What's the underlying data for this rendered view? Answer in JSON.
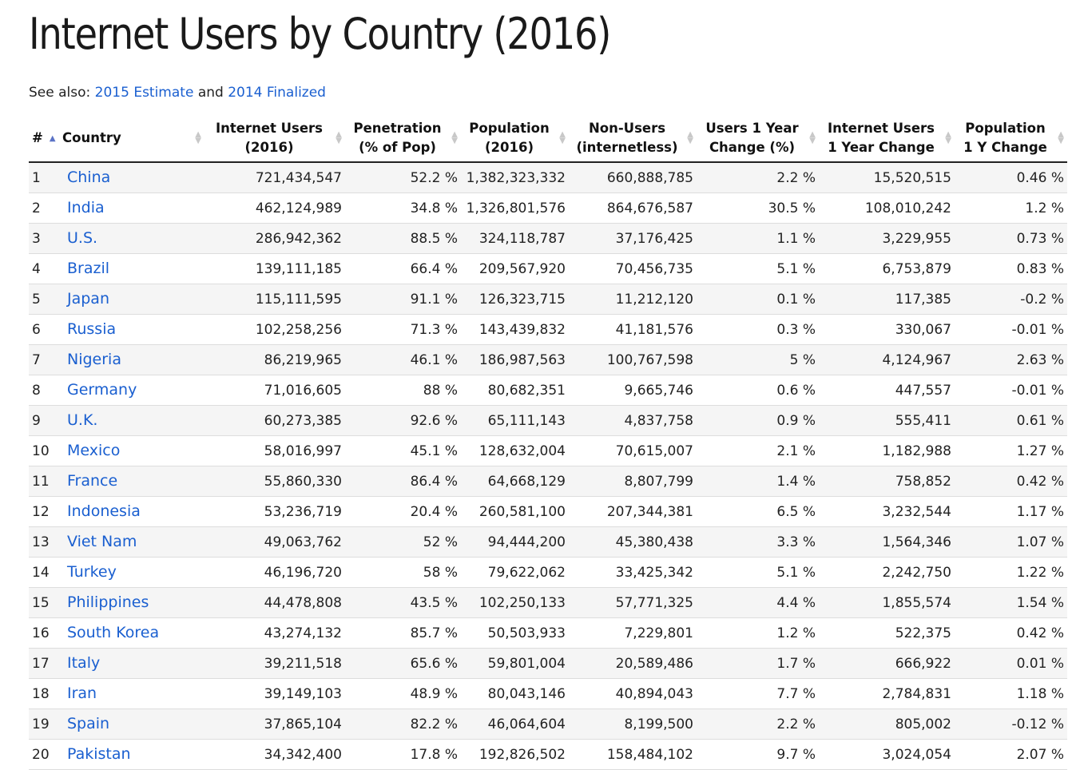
{
  "page": {
    "title": "Internet Users by Country (2016)",
    "see_also_prefix": "See also: ",
    "link_2015": "2015 Estimate",
    "see_also_and": " and ",
    "link_2014": "2014 Finalized"
  },
  "table": {
    "headers": {
      "rank": "#",
      "country": "Country",
      "users_l1": "Internet Users",
      "users_l2": "(2016)",
      "pen_l1": "Penetration",
      "pen_l2": "(% of Pop)",
      "pop_l1": "Population",
      "pop_l2": "(2016)",
      "non_l1": "Non-Users",
      "non_l2": "(internetless)",
      "uchg_l1": "Users 1 Year",
      "uchg_l2": "Change (%)",
      "iuchg_l1": "Internet Users",
      "iuchg_l2": "1 Year Change",
      "pchg_l1": "Population",
      "pchg_l2": "1 Y Change"
    },
    "rows": [
      {
        "rank": "1",
        "country": "China",
        "users": "721,434,547",
        "penetration": "52.2 %",
        "population": "1,382,323,332",
        "non_users": "660,888,785",
        "users_change_pct": "2.2 %",
        "users_change": "15,520,515",
        "pop_change": "0.46 %"
      },
      {
        "rank": "2",
        "country": "India",
        "users": "462,124,989",
        "penetration": "34.8 %",
        "population": "1,326,801,576",
        "non_users": "864,676,587",
        "users_change_pct": "30.5 %",
        "users_change": "108,010,242",
        "pop_change": "1.2 %"
      },
      {
        "rank": "3",
        "country": "U.S.",
        "users": "286,942,362",
        "penetration": "88.5 %",
        "population": "324,118,787",
        "non_users": "37,176,425",
        "users_change_pct": "1.1 %",
        "users_change": "3,229,955",
        "pop_change": "0.73 %"
      },
      {
        "rank": "4",
        "country": "Brazil",
        "users": "139,111,185",
        "penetration": "66.4 %",
        "population": "209,567,920",
        "non_users": "70,456,735",
        "users_change_pct": "5.1 %",
        "users_change": "6,753,879",
        "pop_change": "0.83 %"
      },
      {
        "rank": "5",
        "country": "Japan",
        "users": "115,111,595",
        "penetration": "91.1 %",
        "population": "126,323,715",
        "non_users": "11,212,120",
        "users_change_pct": "0.1 %",
        "users_change": "117,385",
        "pop_change": "-0.2 %"
      },
      {
        "rank": "6",
        "country": "Russia",
        "users": "102,258,256",
        "penetration": "71.3 %",
        "population": "143,439,832",
        "non_users": "41,181,576",
        "users_change_pct": "0.3 %",
        "users_change": "330,067",
        "pop_change": "-0.01 %"
      },
      {
        "rank": "7",
        "country": "Nigeria",
        "users": "86,219,965",
        "penetration": "46.1 %",
        "population": "186,987,563",
        "non_users": "100,767,598",
        "users_change_pct": "5 %",
        "users_change": "4,124,967",
        "pop_change": "2.63 %"
      },
      {
        "rank": "8",
        "country": "Germany",
        "users": "71,016,605",
        "penetration": "88 %",
        "population": "80,682,351",
        "non_users": "9,665,746",
        "users_change_pct": "0.6 %",
        "users_change": "447,557",
        "pop_change": "-0.01 %"
      },
      {
        "rank": "9",
        "country": "U.K.",
        "users": "60,273,385",
        "penetration": "92.6 %",
        "population": "65,111,143",
        "non_users": "4,837,758",
        "users_change_pct": "0.9 %",
        "users_change": "555,411",
        "pop_change": "0.61 %"
      },
      {
        "rank": "10",
        "country": "Mexico",
        "users": "58,016,997",
        "penetration": "45.1 %",
        "population": "128,632,004",
        "non_users": "70,615,007",
        "users_change_pct": "2.1 %",
        "users_change": "1,182,988",
        "pop_change": "1.27 %"
      },
      {
        "rank": "11",
        "country": "France",
        "users": "55,860,330",
        "penetration": "86.4 %",
        "population": "64,668,129",
        "non_users": "8,807,799",
        "users_change_pct": "1.4 %",
        "users_change": "758,852",
        "pop_change": "0.42 %"
      },
      {
        "rank": "12",
        "country": "Indonesia",
        "users": "53,236,719",
        "penetration": "20.4 %",
        "population": "260,581,100",
        "non_users": "207,344,381",
        "users_change_pct": "6.5 %",
        "users_change": "3,232,544",
        "pop_change": "1.17 %"
      },
      {
        "rank": "13",
        "country": "Viet Nam",
        "users": "49,063,762",
        "penetration": "52 %",
        "population": "94,444,200",
        "non_users": "45,380,438",
        "users_change_pct": "3.3 %",
        "users_change": "1,564,346",
        "pop_change": "1.07 %"
      },
      {
        "rank": "14",
        "country": "Turkey",
        "users": "46,196,720",
        "penetration": "58 %",
        "population": "79,622,062",
        "non_users": "33,425,342",
        "users_change_pct": "5.1 %",
        "users_change": "2,242,750",
        "pop_change": "1.22 %"
      },
      {
        "rank": "15",
        "country": "Philippines",
        "users": "44,478,808",
        "penetration": "43.5 %",
        "population": "102,250,133",
        "non_users": "57,771,325",
        "users_change_pct": "4.4 %",
        "users_change": "1,855,574",
        "pop_change": "1.54 %"
      },
      {
        "rank": "16",
        "country": "South Korea",
        "users": "43,274,132",
        "penetration": "85.7 %",
        "population": "50,503,933",
        "non_users": "7,229,801",
        "users_change_pct": "1.2 %",
        "users_change": "522,375",
        "pop_change": "0.42 %"
      },
      {
        "rank": "17",
        "country": "Italy",
        "users": "39,211,518",
        "penetration": "65.6 %",
        "population": "59,801,004",
        "non_users": "20,589,486",
        "users_change_pct": "1.7 %",
        "users_change": "666,922",
        "pop_change": "0.01 %"
      },
      {
        "rank": "18",
        "country": "Iran",
        "users": "39,149,103",
        "penetration": "48.9 %",
        "population": "80,043,146",
        "non_users": "40,894,043",
        "users_change_pct": "7.7 %",
        "users_change": "2,784,831",
        "pop_change": "1.18 %"
      },
      {
        "rank": "19",
        "country": "Spain",
        "users": "37,865,104",
        "penetration": "82.2 %",
        "population": "46,064,604",
        "non_users": "8,199,500",
        "users_change_pct": "2.2 %",
        "users_change": "805,002",
        "pop_change": "-0.12 %"
      },
      {
        "rank": "20",
        "country": "Pakistan",
        "users": "34,342,400",
        "penetration": "17.8 %",
        "population": "192,826,502",
        "non_users": "158,484,102",
        "users_change_pct": "9.7 %",
        "users_change": "3,024,054",
        "pop_change": "2.07 %"
      }
    ]
  }
}
